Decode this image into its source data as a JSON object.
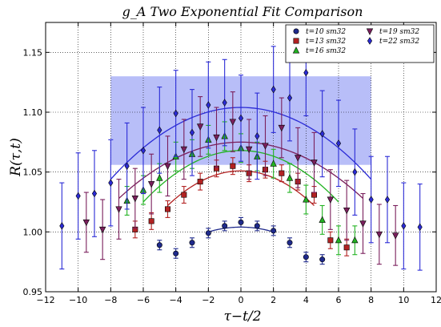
{
  "chart_data": {
    "type": "scatter",
    "title": "g_A Two Exponential Fit Comparison",
    "xlabel": "τ−t/2",
    "ylabel": "R(τ,t)",
    "xlim": [
      -12,
      12
    ],
    "ylim": [
      0.95,
      1.175
    ],
    "xticks": [
      -12,
      -10,
      -8,
      -6,
      -4,
      -2,
      0,
      2,
      4,
      6,
      8,
      10,
      12
    ],
    "yticks": [
      0.95,
      1.0,
      1.05,
      1.1,
      1.15
    ],
    "xtick_labels": [
      "−12",
      "−10",
      "−8",
      "−6",
      "−4",
      "−2",
      "0",
      "2",
      "4",
      "6",
      "8",
      "10",
      "12"
    ],
    "ytick_labels": [
      "0.95",
      "1.00",
      "1.05",
      "1.10",
      "1.15"
    ],
    "grid": true,
    "legend_position": "top-right",
    "band": {
      "x": [
        -8,
        8
      ],
      "y": [
        1.056,
        1.13
      ],
      "color": "#9aa3f5"
    },
    "series": [
      {
        "name": "t=10 sm32",
        "color": "#1f2a8c",
        "marker": "circle",
        "points": [
          {
            "x": -5,
            "y": 0.989,
            "err": 0.004
          },
          {
            "x": -4,
            "y": 0.982,
            "err": 0.004
          },
          {
            "x": -3,
            "y": 0.991,
            "err": 0.004
          },
          {
            "x": -2,
            "y": 0.999,
            "err": 0.004
          },
          {
            "x": -1,
            "y": 1.005,
            "err": 0.004
          },
          {
            "x": 0,
            "y": 1.008,
            "err": 0.004
          },
          {
            "x": 1,
            "y": 1.005,
            "err": 0.004
          },
          {
            "x": 2,
            "y": 1.001,
            "err": 0.004
          },
          {
            "x": 3,
            "y": 0.991,
            "err": 0.004
          },
          {
            "x": 4,
            "y": 0.979,
            "err": 0.004
          },
          {
            "x": 5,
            "y": 0.977,
            "err": 0.004
          }
        ],
        "fit": {
          "x": [
            -2,
            2
          ],
          "peak": 1.004,
          "ends": 1.0
        }
      },
      {
        "name": "t=13 sm32",
        "color": "#b22222",
        "marker": "square",
        "points": [
          {
            "x": -6.5,
            "y": 1.002,
            "err": 0.007
          },
          {
            "x": -5.5,
            "y": 1.009,
            "err": 0.007
          },
          {
            "x": -4.5,
            "y": 1.019,
            "err": 0.007
          },
          {
            "x": -3.5,
            "y": 1.031,
            "err": 0.007
          },
          {
            "x": -2.5,
            "y": 1.042,
            "err": 0.007
          },
          {
            "x": -1.5,
            "y": 1.053,
            "err": 0.007
          },
          {
            "x": -0.5,
            "y": 1.055,
            "err": 0.007
          },
          {
            "x": 0.5,
            "y": 1.049,
            "err": 0.007
          },
          {
            "x": 1.5,
            "y": 1.052,
            "err": 0.007
          },
          {
            "x": 2.5,
            "y": 1.049,
            "err": 0.007
          },
          {
            "x": 3.5,
            "y": 1.042,
            "err": 0.007
          },
          {
            "x": 4.5,
            "y": 1.031,
            "err": 0.007
          },
          {
            "x": 5.5,
            "y": 0.993,
            "err": 0.007
          },
          {
            "x": 6.5,
            "y": 0.987,
            "err": 0.007
          }
        ],
        "fit": {
          "x": [
            -4.5,
            4.5
          ],
          "peak": 1.051,
          "ends": 1.022
        }
      },
      {
        "name": "t=16 sm32",
        "color": "#22b322",
        "marker": "triangle-up",
        "points": [
          {
            "x": -7,
            "y": 1.026,
            "err": 0.012
          },
          {
            "x": -6,
            "y": 1.035,
            "err": 0.012
          },
          {
            "x": -5,
            "y": 1.045,
            "err": 0.012
          },
          {
            "x": -4,
            "y": 1.063,
            "err": 0.012
          },
          {
            "x": -3,
            "y": 1.065,
            "err": 0.012
          },
          {
            "x": -2,
            "y": 1.077,
            "err": 0.012
          },
          {
            "x": -1,
            "y": 1.08,
            "err": 0.012
          },
          {
            "x": 0,
            "y": 1.07,
            "err": 0.012
          },
          {
            "x": 1,
            "y": 1.063,
            "err": 0.012
          },
          {
            "x": 2,
            "y": 1.057,
            "err": 0.012
          },
          {
            "x": 3,
            "y": 1.045,
            "err": 0.012
          },
          {
            "x": 4,
            "y": 1.027,
            "err": 0.012
          },
          {
            "x": 5,
            "y": 1.01,
            "err": 0.012
          },
          {
            "x": 6,
            "y": 0.993,
            "err": 0.012
          },
          {
            "x": 7,
            "y": 0.993,
            "err": 0.012
          }
        ],
        "fit": {
          "x": [
            -6,
            6
          ],
          "peak": 1.068,
          "ends": 1.025
        }
      },
      {
        "name": "t=19 sm32",
        "color": "#7a1f5c",
        "marker": "triangle-down",
        "points": [
          {
            "x": -9.5,
            "y": 1.008,
            "err": 0.025
          },
          {
            "x": -8.5,
            "y": 1.002,
            "err": 0.025
          },
          {
            "x": -7.5,
            "y": 1.019,
            "err": 0.025
          },
          {
            "x": -6.5,
            "y": 1.028,
            "err": 0.025
          },
          {
            "x": -5.5,
            "y": 1.04,
            "err": 0.025
          },
          {
            "x": -4.5,
            "y": 1.055,
            "err": 0.025
          },
          {
            "x": -3.5,
            "y": 1.069,
            "err": 0.025
          },
          {
            "x": -2.5,
            "y": 1.088,
            "err": 0.025
          },
          {
            "x": -1.5,
            "y": 1.079,
            "err": 0.025
          },
          {
            "x": -0.5,
            "y": 1.092,
            "err": 0.025
          },
          {
            "x": 0.5,
            "y": 1.069,
            "err": 0.025
          },
          {
            "x": 1.5,
            "y": 1.072,
            "err": 0.025
          },
          {
            "x": 2.5,
            "y": 1.087,
            "err": 0.025
          },
          {
            "x": 3.5,
            "y": 1.062,
            "err": 0.025
          },
          {
            "x": 4.5,
            "y": 1.058,
            "err": 0.025
          },
          {
            "x": 5.5,
            "y": 1.027,
            "err": 0.025
          },
          {
            "x": 6.5,
            "y": 1.018,
            "err": 0.025
          },
          {
            "x": 7.5,
            "y": 1.007,
            "err": 0.025
          },
          {
            "x": 8.5,
            "y": 0.998,
            "err": 0.025
          },
          {
            "x": 9.5,
            "y": 0.997,
            "err": 0.025
          }
        ],
        "fit": {
          "x": [
            -7.5,
            7.5
          ],
          "peak": 1.075,
          "ends": 1.028
        }
      },
      {
        "name": "t=22 sm32",
        "color": "#2b2bd6",
        "marker": "diamond",
        "points": [
          {
            "x": -11,
            "y": 1.005,
            "err": 0.036
          },
          {
            "x": -10,
            "y": 1.03,
            "err": 0.036
          },
          {
            "x": -9,
            "y": 1.032,
            "err": 0.036
          },
          {
            "x": -8,
            "y": 1.041,
            "err": 0.036
          },
          {
            "x": -7,
            "y": 1.055,
            "err": 0.036
          },
          {
            "x": -6,
            "y": 1.068,
            "err": 0.036
          },
          {
            "x": -5,
            "y": 1.085,
            "err": 0.036
          },
          {
            "x": -4,
            "y": 1.099,
            "err": 0.036
          },
          {
            "x": -3,
            "y": 1.083,
            "err": 0.036
          },
          {
            "x": -2,
            "y": 1.106,
            "err": 0.036
          },
          {
            "x": -1,
            "y": 1.108,
            "err": 0.036
          },
          {
            "x": 0,
            "y": 1.095,
            "err": 0.036
          },
          {
            "x": 1,
            "y": 1.08,
            "err": 0.036
          },
          {
            "x": 2,
            "y": 1.119,
            "err": 0.036
          },
          {
            "x": 3,
            "y": 1.112,
            "err": 0.036
          },
          {
            "x": 4,
            "y": 1.133,
            "err": 0.036
          },
          {
            "x": 5,
            "y": 1.082,
            "err": 0.036
          },
          {
            "x": 6,
            "y": 1.074,
            "err": 0.036
          },
          {
            "x": 7,
            "y": 1.05,
            "err": 0.036
          },
          {
            "x": 8,
            "y": 1.027,
            "err": 0.036
          },
          {
            "x": 9,
            "y": 1.027,
            "err": 0.036
          },
          {
            "x": 10,
            "y": 1.005,
            "err": 0.036
          },
          {
            "x": 11,
            "y": 1.004,
            "err": 0.036
          }
        ],
        "fit": {
          "x": [
            -8,
            8
          ],
          "peak": 1.104,
          "ends": 1.044
        }
      }
    ]
  }
}
